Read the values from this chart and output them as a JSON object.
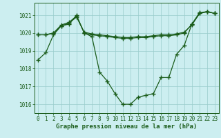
{
  "title": "Graphe pression niveau de la mer (hPa)",
  "bg_color": "#cceef0",
  "grid_color": "#99cccc",
  "line_color": "#1a5c1a",
  "marker_color": "#1a5c1a",
  "ylim": [
    1015.5,
    1021.7
  ],
  "xlim": [
    -0.5,
    23.5
  ],
  "yticks": [
    1016,
    1017,
    1018,
    1019,
    1020,
    1021
  ],
  "xticks": [
    0,
    1,
    2,
    3,
    4,
    5,
    6,
    7,
    8,
    9,
    10,
    11,
    12,
    13,
    14,
    15,
    16,
    17,
    18,
    19,
    20,
    21,
    22,
    23
  ],
  "line1_x": [
    0,
    1,
    2,
    3,
    4,
    5,
    6,
    7,
    8,
    9,
    10,
    11,
    12,
    13,
    14,
    15,
    16,
    17,
    18,
    19,
    20,
    21,
    22,
    23
  ],
  "line1_y": [
    1018.5,
    1018.9,
    1019.9,
    1020.4,
    1020.5,
    1021.0,
    1020.0,
    1019.8,
    1017.8,
    1017.3,
    1016.6,
    1016.0,
    1016.0,
    1016.4,
    1016.5,
    1016.6,
    1017.5,
    1017.5,
    1018.8,
    1019.3,
    1020.5,
    1021.1,
    1021.2,
    1021.1
  ],
  "line2_x": [
    0,
    1,
    2,
    3,
    4,
    5,
    6,
    7,
    8,
    9,
    10,
    11,
    12,
    13,
    14,
    15,
    16,
    17,
    18,
    19,
    20,
    21,
    22,
    23
  ],
  "line2_y": [
    1019.9,
    1019.9,
    1020.0,
    1020.45,
    1020.6,
    1020.95,
    1020.0,
    1019.9,
    1019.85,
    1019.8,
    1019.75,
    1019.7,
    1019.7,
    1019.75,
    1019.75,
    1019.8,
    1019.85,
    1019.85,
    1019.9,
    1020.0,
    1020.5,
    1021.15,
    1021.2,
    1021.1
  ],
  "line3_x": [
    0,
    1,
    2,
    3,
    4,
    5,
    6,
    7,
    8,
    9,
    10,
    11,
    12,
    13,
    14,
    15,
    16,
    17,
    18,
    19,
    20,
    21,
    22,
    23
  ],
  "line3_y": [
    1019.9,
    1019.9,
    1020.0,
    1020.4,
    1020.55,
    1020.9,
    1020.05,
    1019.95,
    1019.9,
    1019.85,
    1019.8,
    1019.75,
    1019.75,
    1019.8,
    1019.8,
    1019.85,
    1019.9,
    1019.9,
    1019.95,
    1020.05,
    1020.45,
    1021.1,
    1021.2,
    1021.1
  ],
  "tick_fontsize": 5.5,
  "title_fontsize": 6.5
}
